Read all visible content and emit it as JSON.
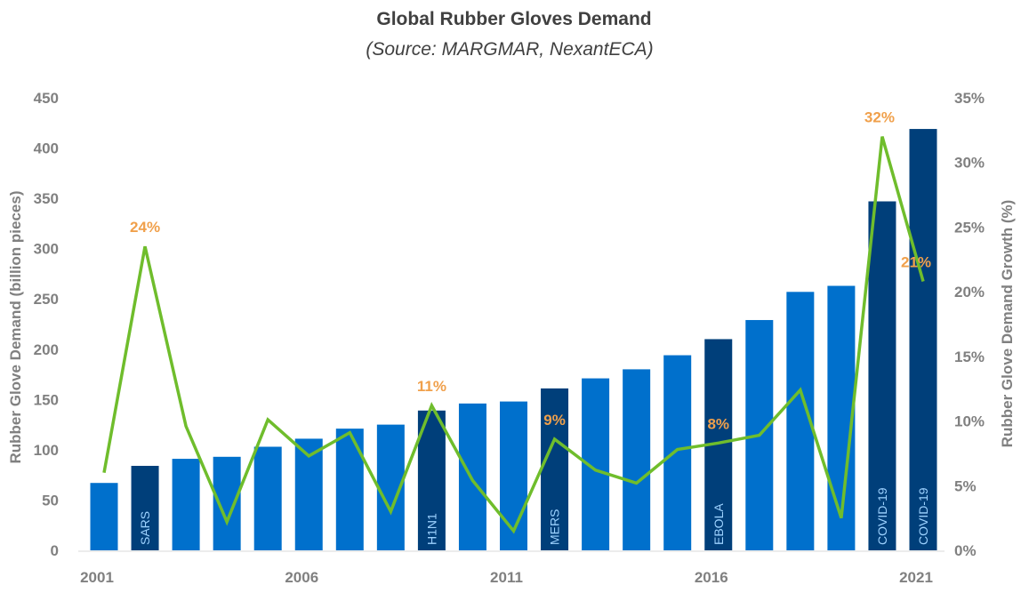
{
  "chart_data": {
    "type": "bar+line",
    "title": "Global Rubber Gloves Demand",
    "subtitle": "(Source: MARGMAR, NexantECA)",
    "ylabel": "Rubber Glove Demand (billion pieces)",
    "y2label": "Rubber Glove Demand Growth (%)",
    "ylim": [
      0,
      450
    ],
    "y2lim": [
      0,
      35
    ],
    "yticks": [
      0,
      50,
      100,
      150,
      200,
      250,
      300,
      350,
      400,
      450
    ],
    "y2ticks": [
      "0%",
      "5%",
      "10%",
      "15%",
      "20%",
      "25%",
      "30%",
      "35%"
    ],
    "xtick_labels": [
      "2001",
      "2006",
      "2011",
      "2016",
      "2021"
    ],
    "grid": false,
    "x": [
      2001,
      2002,
      2003,
      2004,
      2005,
      2006,
      2007,
      2008,
      2009,
      2010,
      2011,
      2012,
      2013,
      2014,
      2015,
      2016,
      2017,
      2018,
      2019,
      2020,
      2021
    ],
    "demand": [
      67,
      84,
      91,
      93,
      103,
      111,
      121,
      125,
      139,
      146,
      148,
      161,
      171,
      180,
      194,
      210,
      229,
      257,
      263,
      347,
      419
    ],
    "growth_pct": [
      6.0,
      23.5,
      9.6,
      2.2,
      10.1,
      7.3,
      9.1,
      3.0,
      11.2,
      5.4,
      1.5,
      8.6,
      6.2,
      5.2,
      7.8,
      8.3,
      8.9,
      12.4,
      2.5,
      32.0,
      20.8
    ],
    "bar_event_labels": {
      "2002": "SARS",
      "2009": "H1N1",
      "2012": "MERS",
      "2016": "EBOLA",
      "2020": "COVID-19",
      "2021": "COVID-19"
    },
    "growth_data_labels": {
      "2002": "24%",
      "2009": "11%",
      "2012": "9%",
      "2016": "8%",
      "2020": "32%",
      "2021": "21%"
    },
    "colors": {
      "bar": "#0070cc",
      "bar_event": "#003f7a",
      "line": "#6fbd2c",
      "data_label": "#f0a04b",
      "axis_text": "#808080"
    }
  }
}
